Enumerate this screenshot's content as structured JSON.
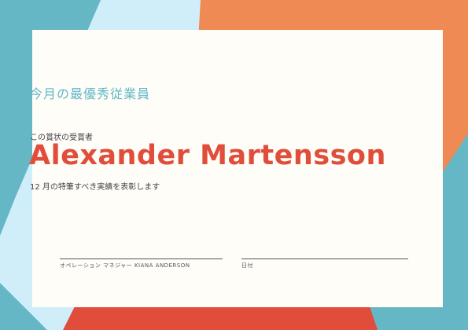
{
  "certificate": {
    "heading": "今月の最優秀従業員",
    "presented_to": "この賞状の受賞者",
    "recipient_name": "Alexander Martensson",
    "subtitle": "12 月の特筆すべき実績を表彰します"
  },
  "signatures": {
    "left_label": "オペレーション マネジャー KIANA ANDERSON",
    "right_label": "日付"
  },
  "colors": {
    "teal": "#66b7c5",
    "light_blue": "#cfeef9",
    "orange": "#f08a54",
    "red": "#e04e3b",
    "name_color": "#e04e3b",
    "heading_color": "#5fb7c9"
  }
}
